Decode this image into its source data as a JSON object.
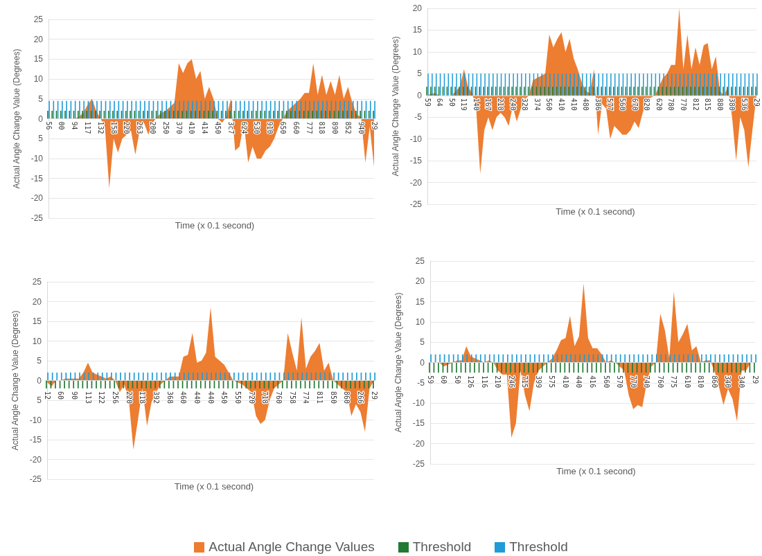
{
  "chart_data": [
    {
      "type": "area",
      "xlabel": "Time (x 0.1 second)",
      "ylabel": "Actual Angle Change Value (Degrees)",
      "ylim": [
        -25,
        25
      ],
      "yticks": [
        -25,
        -20,
        -15,
        -10,
        {
          "value": -5,
          "label": "5"
        },
        0,
        5,
        10,
        15,
        20,
        25
      ],
      "grid": "y",
      "legend": "bottom",
      "categories": [
        "56",
        null,
        null,
        "00",
        null,
        null,
        "94",
        null,
        null,
        "117",
        null,
        null,
        "132",
        null,
        null,
        "158",
        null,
        null,
        "220",
        null,
        null,
        "263",
        null,
        null,
        "200",
        null,
        null,
        "250",
        null,
        null,
        "370",
        null,
        null,
        "410",
        null,
        null,
        "414",
        null,
        null,
        "450",
        null,
        null,
        "3c7",
        null,
        null,
        "624",
        null,
        null,
        "530",
        null,
        null,
        "910",
        null,
        null,
        "650",
        null,
        null,
        "660",
        null,
        null,
        "777",
        null,
        null,
        "818",
        null,
        null,
        "890",
        null,
        null,
        "852",
        null,
        null,
        "940",
        null,
        null,
        "29"
      ],
      "series": [
        {
          "name": "Actual Angle Change Values",
          "color": "#ed7d31",
          "values": [
            0,
            0,
            0,
            0,
            0,
            0,
            0,
            0.5,
            1.5,
            3.5,
            5,
            2,
            0,
            -2,
            -17.5,
            -5,
            -8.5,
            -5,
            -4,
            -3,
            -9,
            -3,
            -1,
            -4,
            -1,
            0.5,
            1.5,
            2,
            3,
            4,
            14,
            11.5,
            14,
            15,
            10,
            12,
            5,
            8,
            5,
            0,
            -1,
            0.5,
            5,
            -8,
            -7,
            -1,
            -11,
            -7,
            -10,
            -10,
            -8,
            -7,
            -5,
            -2,
            0,
            2,
            3,
            4,
            5,
            6.5,
            6.5,
            14,
            6,
            11,
            6,
            9.5,
            6,
            11,
            5,
            8,
            4,
            1,
            0.5,
            -11,
            -2,
            -12
          ]
        },
        {
          "name": "Threshold",
          "type": "bar",
          "color": "#217a34",
          "values": [
            2,
            2,
            2,
            2,
            2,
            2,
            2,
            2,
            2,
            2,
            2,
            2,
            2,
            2,
            2,
            2,
            2,
            2,
            2,
            2,
            2,
            2,
            2,
            2,
            2,
            2,
            2,
            2,
            2,
            2,
            2,
            2,
            2,
            2,
            2,
            2,
            2,
            2,
            2,
            2,
            2,
            2,
            2,
            2,
            2,
            2,
            2,
            2,
            2,
            2,
            2,
            2,
            2,
            2,
            2,
            2,
            2,
            2,
            2,
            2,
            2,
            2,
            2,
            2,
            2,
            2,
            2,
            2,
            2,
            2,
            2,
            2,
            2,
            2,
            2,
            2
          ]
        },
        {
          "name": "Threshold",
          "type": "bar",
          "color": "#1f9bd7",
          "values": [
            4.5,
            4.5,
            4.5,
            4.5,
            4.5,
            4.5,
            4.5,
            4.5,
            4.5,
            4.5,
            4.5,
            4.5,
            4.5,
            4.5,
            4.5,
            4.5,
            4.5,
            4.5,
            4.5,
            4.5,
            4.5,
            4.5,
            4.5,
            4.5,
            4.5,
            4.5,
            4.5,
            4.5,
            4.5,
            4.5,
            4.5,
            4.5,
            4.5,
            4.5,
            4.5,
            4.5,
            4.5,
            4.5,
            4.5,
            4.5,
            4.5,
            4.5,
            4.5,
            4.5,
            4.5,
            4.5,
            4.5,
            4.5,
            4.5,
            4.5,
            4.5,
            4.5,
            4.5,
            4.5,
            4.5,
            4.5,
            4.5,
            4.5,
            4.5,
            4.5,
            4.5,
            4.5,
            4.5,
            4.5,
            4.5,
            4.5,
            4.5,
            4.5,
            4.5,
            4.5,
            4.5,
            4.5,
            4.5,
            4.5,
            4.5,
            4.5
          ]
        }
      ]
    },
    {
      "type": "area",
      "xlabel": "Time (x 0.1 second)",
      "ylabel": "Actual Angle Change Value (Degrees)",
      "ylim": [
        -25,
        20
      ],
      "yticks": [
        -25,
        -20,
        -15,
        -10,
        -5,
        0,
        5,
        10,
        15,
        20
      ],
      "grid": "y",
      "categories": [
        "59",
        null,
        null,
        "64",
        null,
        null,
        "50",
        null,
        null,
        "119",
        null,
        null,
        "140",
        null,
        null,
        "167",
        null,
        null,
        "218",
        null,
        null,
        "240",
        null,
        null,
        "328",
        null,
        null,
        "374",
        null,
        null,
        "560",
        null,
        null,
        "410",
        null,
        null,
        "410",
        null,
        null,
        "480",
        null,
        null,
        "386",
        null,
        null,
        "577",
        null,
        null,
        "560",
        null,
        null,
        "670",
        null,
        null,
        "820",
        null,
        null,
        "620",
        null,
        null,
        "780",
        null,
        null,
        "770",
        null,
        null,
        "812",
        null,
        null,
        "815",
        null,
        null,
        "880",
        null,
        null,
        "380",
        null,
        null,
        "536",
        null,
        null,
        "29"
      ],
      "series": [
        {
          "color": "#ed7d31",
          "values": [
            0,
            0.5,
            0.5,
            0,
            0,
            0,
            0,
            1,
            2,
            6,
            2,
            0.5,
            -3,
            -18,
            -8,
            -5,
            -8,
            -5,
            -4,
            -5,
            -7,
            -2.5,
            -6,
            -3,
            -1,
            0,
            3.5,
            4,
            4.5,
            5,
            14,
            11,
            13,
            14.5,
            10,
            13,
            8.5,
            6,
            3,
            1,
            0.5,
            6,
            -9,
            -2,
            -3,
            -10,
            -7,
            -8,
            -9,
            -9,
            -8,
            -6,
            -7.5,
            -4,
            -1,
            -0.5,
            0,
            2,
            4,
            5,
            7,
            7,
            20,
            6,
            14,
            6,
            11,
            7,
            11.5,
            12,
            6,
            9,
            1,
            0,
            2,
            -5,
            -15,
            -5,
            -8,
            -16.5,
            -8,
            0
          ]
        },
        {
          "type": "bar",
          "color": "#217a34",
          "values": [
            2,
            2,
            2,
            2,
            2,
            2,
            2,
            2,
            2,
            2,
            2,
            2,
            2,
            2,
            2,
            2,
            2,
            2,
            2,
            2,
            2,
            2,
            2,
            2,
            2,
            2,
            2,
            2,
            2,
            2,
            2,
            2,
            2,
            2,
            2,
            2,
            2,
            2,
            2,
            2,
            2,
            2,
            2,
            2,
            2,
            2,
            2,
            2,
            2,
            2,
            2,
            2,
            2,
            2,
            2,
            2,
            2,
            2,
            2,
            2,
            2,
            2,
            2,
            2,
            2,
            2,
            2,
            2,
            2,
            2,
            2,
            2,
            2,
            2,
            2,
            2,
            2,
            2,
            2,
            2,
            2,
            2
          ]
        },
        {
          "type": "bar",
          "color": "#1f9bd7",
          "values": [
            5,
            5,
            5,
            5,
            5,
            5,
            5,
            5,
            5,
            5,
            5,
            5,
            5,
            5,
            5,
            5,
            5,
            5,
            5,
            5,
            5,
            5,
            5,
            5,
            5,
            5,
            5,
            5,
            5,
            5,
            5,
            5,
            5,
            5,
            5,
            5,
            5,
            5,
            5,
            5,
            5,
            5,
            5,
            5,
            5,
            5,
            5,
            5,
            5,
            5,
            5,
            5,
            5,
            5,
            5,
            5,
            5,
            5,
            5,
            5,
            5,
            5,
            5,
            5,
            5,
            5,
            5,
            5,
            5,
            5,
            5,
            5,
            5,
            5,
            5,
            5,
            5,
            5,
            5,
            5,
            5,
            5
          ]
        }
      ]
    },
    {
      "type": "area",
      "xlabel": "Time (x 0.1 second)",
      "ylabel": "Actual Angle Change Value (Degrees)",
      "ylim": [
        -25,
        25
      ],
      "yticks": [
        -25,
        -20,
        -15,
        -10,
        {
          "value": -5,
          "label": "5"
        },
        0,
        5,
        10,
        15,
        20,
        25
      ],
      "grid": "y",
      "categories": [
        "12",
        null,
        null,
        "60",
        null,
        null,
        "90",
        null,
        null,
        "113",
        null,
        null,
        "122",
        null,
        null,
        "256",
        null,
        null,
        "220",
        null,
        null,
        "118",
        null,
        null,
        "392",
        null,
        null,
        "368",
        null,
        null,
        "460",
        null,
        null,
        "440",
        null,
        null,
        "440",
        null,
        null,
        "450",
        null,
        null,
        "550",
        null,
        null,
        "720",
        null,
        null,
        "718",
        null,
        null,
        "760",
        null,
        null,
        "758",
        null,
        null,
        "774",
        null,
        null,
        "811",
        null,
        null,
        "850",
        null,
        null,
        "860",
        null,
        null,
        "266",
        null,
        null,
        "29"
      ],
      "series": [
        {
          "color": "#ed7d31",
          "values": [
            -0.5,
            -1.5,
            0,
            0,
            0.5,
            0.5,
            0.5,
            0.5,
            2,
            4.5,
            2,
            1.5,
            1,
            0.5,
            1,
            0,
            -3,
            -1,
            -5,
            -17.5,
            -10,
            -2,
            -11.5,
            -5.5,
            -3,
            -1,
            0,
            1,
            1,
            1,
            6,
            6.5,
            12,
            4.5,
            5,
            7,
            18.5,
            6,
            5,
            4,
            2,
            0,
            -0.5,
            -1,
            -2,
            -3,
            -9,
            -11,
            -10,
            -5,
            -2,
            -1,
            0,
            12,
            7,
            2.5,
            16,
            3,
            6,
            7.5,
            9.5,
            2.5,
            4.5,
            0,
            -1,
            -2,
            -3,
            -9,
            -6,
            -8,
            -13,
            -2,
            0
          ]
        },
        {
          "type": "bar",
          "color": "#217a34",
          "values": [
            -2,
            -2,
            -2,
            -2,
            -2,
            -2,
            -2,
            -2,
            -2,
            -2,
            -2,
            -2,
            -2,
            -2,
            -2,
            -2,
            -2,
            -2,
            -2,
            -2,
            -2,
            -2,
            -2,
            -2,
            -2,
            -2,
            -2,
            -2,
            -2,
            -2,
            -2,
            -2,
            -2,
            -2,
            -2,
            -2,
            -2,
            -2,
            -2,
            -2,
            -2,
            -2,
            -2,
            -2,
            -2,
            -2,
            -2,
            -2,
            -2,
            -2,
            -2,
            -2,
            -2,
            -2,
            -2,
            -2,
            -2,
            -2,
            -2,
            -2,
            -2,
            -2,
            -2,
            -2,
            -2,
            -2,
            -2,
            -2,
            -2,
            -2,
            -2,
            -2,
            -2
          ]
        },
        {
          "type": "bar",
          "color": "#1f9bd7",
          "values": [
            2,
            2,
            2,
            2,
            2,
            2,
            2,
            2,
            2,
            2,
            2,
            2,
            2,
            2,
            2,
            2,
            2,
            2,
            2,
            2,
            2,
            2,
            2,
            2,
            2,
            2,
            2,
            2,
            2,
            2,
            2,
            2,
            2,
            2,
            2,
            2,
            2,
            2,
            2,
            2,
            2,
            2,
            2,
            2,
            2,
            2,
            2,
            2,
            2,
            2,
            2,
            2,
            2,
            2,
            2,
            2,
            2,
            2,
            2,
            2,
            2,
            2,
            2,
            2,
            2,
            2,
            2,
            2,
            2,
            2,
            2,
            2,
            2
          ]
        }
      ]
    },
    {
      "type": "area",
      "xlabel": "Time (x 0.1 second)",
      "ylabel": "Actual Angle Change Value (Degrees)",
      "ylim": [
        -25,
        25
      ],
      "yticks": [
        -25,
        -20,
        -15,
        -10,
        -5,
        0,
        5,
        10,
        15,
        20,
        25
      ],
      "grid": "y",
      "categories": [
        "59",
        null,
        null,
        "60",
        null,
        null,
        "50",
        null,
        null,
        "126",
        null,
        null,
        "116",
        null,
        null,
        "210",
        null,
        null,
        "246",
        null,
        null,
        "715",
        null,
        null,
        "399",
        null,
        null,
        "575",
        null,
        null,
        "410",
        null,
        null,
        "440",
        null,
        null,
        "416",
        null,
        null,
        "560",
        null,
        null,
        "570",
        null,
        null,
        "770",
        null,
        null,
        "740",
        null,
        null,
        "760",
        null,
        null,
        "775",
        null,
        null,
        "610",
        null,
        null,
        "810",
        null,
        null,
        "860",
        null,
        null,
        "340",
        null,
        null,
        "340",
        null,
        null,
        "29"
      ],
      "series": [
        {
          "color": "#ed7d31",
          "values": [
            0,
            0,
            0,
            -1,
            -0.5,
            0,
            0.5,
            0.5,
            4,
            1.5,
            1,
            0.5,
            0,
            0.5,
            0,
            -2,
            -3,
            -3,
            -18.5,
            -15,
            -2,
            -8,
            -12,
            -5,
            -2,
            -1,
            0,
            1,
            3,
            5.5,
            6,
            11.5,
            4,
            6.5,
            19.5,
            6,
            3.5,
            3.5,
            2,
            0,
            0.5,
            0,
            -1,
            -2,
            -8,
            -11.5,
            -10.5,
            -11,
            -5,
            -1,
            0,
            12,
            8,
            1,
            17.5,
            5,
            7,
            9.5,
            3,
            4,
            0,
            0.5,
            0.5,
            -2,
            -6,
            -10.5,
            -6.5,
            -9,
            -14.5,
            -2,
            -2,
            0,
            0
          ]
        },
        {
          "type": "bar",
          "color": "#217a34",
          "values": [
            -2.5,
            -2.5,
            -2.5,
            -2.5,
            -2.5,
            -2.5,
            -2.5,
            -2.5,
            -2.5,
            -2.5,
            -2.5,
            -2.5,
            -2.5,
            -2.5,
            -2.5,
            -2.5,
            -2.5,
            -2.5,
            -2.5,
            -2.5,
            -2.5,
            -2.5,
            -2.5,
            -2.5,
            -2.5,
            -2.5,
            -2.5,
            -2.5,
            -2.5,
            -2.5,
            -2.5,
            -2.5,
            -2.5,
            -2.5,
            -2.5,
            -2.5,
            -2.5,
            -2.5,
            -2.5,
            -2.5,
            -2.5,
            -2.5,
            -2.5,
            -2.5,
            -2.5,
            -2.5,
            -2.5,
            -2.5,
            -2.5,
            -2.5,
            -2.5,
            -2.5,
            -2.5,
            -2.5,
            -2.5,
            -2.5,
            -2.5,
            -2.5,
            -2.5,
            -2.5,
            -2.5,
            -2.5,
            -2.5,
            -2.5,
            -2.5,
            -2.5,
            -2.5,
            -2.5,
            -2.5,
            -2.5,
            -2.5,
            -2.5,
            -2.5
          ]
        },
        {
          "type": "bar",
          "color": "#1f9bd7",
          "values": [
            2,
            2,
            2,
            2,
            2,
            2,
            2,
            2,
            2,
            2,
            2,
            2,
            2,
            2,
            2,
            2,
            2,
            2,
            2,
            2,
            2,
            2,
            2,
            2,
            2,
            2,
            2,
            2,
            2,
            2,
            2,
            2,
            2,
            2,
            2,
            2,
            2,
            2,
            2,
            2,
            2,
            2,
            2,
            2,
            2,
            2,
            2,
            2,
            2,
            2,
            2,
            2,
            2,
            2,
            2,
            2,
            2,
            2,
            2,
            2,
            2,
            2,
            2,
            2,
            2,
            2,
            2,
            2,
            2,
            2,
            2,
            2,
            2
          ]
        }
      ]
    }
  ]
}
